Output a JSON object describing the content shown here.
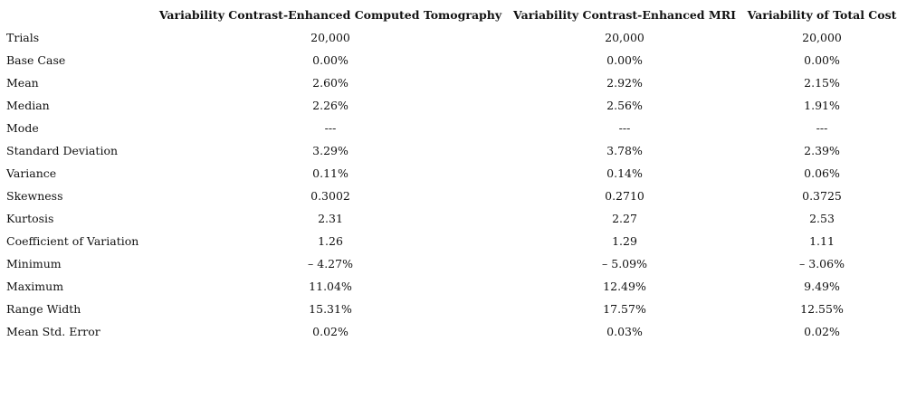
{
  "table": {
    "headers": [
      "Variability Contrast-Enhanced Computed Tomography",
      "Variability Contrast-Enhanced MRI",
      "Variability of Total Cost"
    ],
    "rows": [
      [
        "Trials",
        "20,000",
        "20,000",
        "20,000"
      ],
      [
        "Base Case",
        "0.00%",
        "0.00%",
        "0.00%"
      ],
      [
        "Mean",
        "2.60%",
        "2.92%",
        "2.15%"
      ],
      [
        "Median",
        "2.26%",
        "2.56%",
        "1.91%"
      ],
      [
        "Mode",
        "---",
        "---",
        "---"
      ],
      [
        "Standard Deviation",
        "3.29%",
        "3.78%",
        "2.39%"
      ],
      [
        "Variance",
        "0.11%",
        "0.14%",
        "0.06%"
      ],
      [
        "Skewness",
        "0.3002",
        "0.2710",
        "0.3725"
      ],
      [
        "Kurtosis",
        "2.31",
        "2.27",
        "2.53"
      ],
      [
        "Coefficient of Variation",
        "1.26",
        "1.29",
        "1.11"
      ],
      [
        "Minimum",
        "– 4.27%",
        "– 5.09%",
        "– 3.06%"
      ],
      [
        "Maximum",
        "11.04%",
        "12.49%",
        "9.49%"
      ],
      [
        "Range Width",
        "15.31%",
        "17.57%",
        "12.55%"
      ],
      [
        "Mean Std. Error",
        "0.02%",
        "0.03%",
        "0.02%"
      ]
    ]
  }
}
